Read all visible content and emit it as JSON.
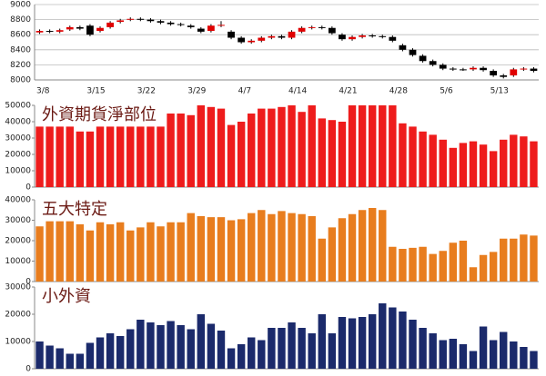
{
  "chart_data": [
    {
      "type": "candlestick",
      "categories": [
        "3/8",
        null,
        null,
        null,
        null,
        "3/15",
        null,
        null,
        null,
        null,
        "3/22",
        null,
        null,
        null,
        null,
        "3/29",
        null,
        null,
        null,
        null,
        "4/7",
        null,
        null,
        null,
        null,
        "4/14",
        null,
        null,
        null,
        null,
        "4/21",
        null,
        null,
        null,
        null,
        "4/28",
        null,
        null,
        null,
        null,
        "5/6",
        null,
        null,
        null,
        null,
        "5/13",
        null,
        null,
        null,
        null
      ],
      "open": [
        8630,
        8650,
        8640,
        8670,
        8700,
        8720,
        8650,
        8700,
        8770,
        8800,
        8810,
        8800,
        8780,
        8760,
        8740,
        8720,
        8680,
        8650,
        8720,
        8640,
        8560,
        8500,
        8520,
        8560,
        8580,
        8560,
        8640,
        8690,
        8700,
        8690,
        8600,
        8540,
        8570,
        8590,
        8580,
        8570,
        8460,
        8400,
        8320,
        8250,
        8200,
        8150,
        8140,
        8140,
        8160,
        8120,
        8060,
        8060,
        8140,
        8150
      ],
      "close": [
        8650,
        8640,
        8660,
        8700,
        8680,
        8600,
        8690,
        8760,
        8790,
        8810,
        8800,
        8780,
        8760,
        8740,
        8730,
        8700,
        8640,
        8720,
        8730,
        8560,
        8500,
        8520,
        8560,
        8580,
        8560,
        8640,
        8690,
        8700,
        8690,
        8620,
        8540,
        8570,
        8590,
        8580,
        8570,
        8520,
        8400,
        8330,
        8250,
        8200,
        8150,
        8140,
        8140,
        8160,
        8130,
        8060,
        8040,
        8140,
        8150,
        8120
      ],
      "high": [
        8670,
        8670,
        8680,
        8720,
        8720,
        8740,
        8710,
        8780,
        8810,
        8830,
        8830,
        8820,
        8800,
        8780,
        8760,
        8740,
        8700,
        8740,
        8780,
        8660,
        8580,
        8540,
        8580,
        8600,
        8600,
        8660,
        8710,
        8720,
        8720,
        8710,
        8620,
        8590,
        8610,
        8610,
        8600,
        8590,
        8480,
        8420,
        8340,
        8270,
        8220,
        8170,
        8160,
        8180,
        8180,
        8140,
        8080,
        8160,
        8170,
        8170
      ],
      "low": [
        8610,
        8620,
        8620,
        8650,
        8660,
        8580,
        8630,
        8680,
        8750,
        8780,
        8780,
        8760,
        8740,
        8720,
        8710,
        8680,
        8620,
        8630,
        8700,
        8540,
        8480,
        8480,
        8500,
        8540,
        8540,
        8540,
        8620,
        8670,
        8670,
        8600,
        8520,
        8520,
        8550,
        8560,
        8550,
        8500,
        8380,
        8310,
        8230,
        8180,
        8130,
        8120,
        8120,
        8120,
        8110,
        8040,
        8020,
        8040,
        8120,
        8100
      ],
      "up_color": "#e00000",
      "down_color": "#000000",
      "ylim": [
        8000,
        9000
      ],
      "yticks": [
        8000,
        8200,
        8400,
        8600,
        8800,
        9000
      ],
      "grid": true
    },
    {
      "type": "bar",
      "title": "外資期貨淨部位",
      "color": "#ee1c1c",
      "values": [
        37000,
        37000,
        37000,
        37000,
        34000,
        34000,
        37000,
        37000,
        37000,
        37000,
        37000,
        37000,
        37000,
        45000,
        45000,
        44000,
        50000,
        49000,
        48000,
        38000,
        40000,
        45000,
        48000,
        48000,
        49000,
        50000,
        46000,
        50000,
        42000,
        41000,
        40000,
        50000,
        50000,
        50000,
        50000,
        50000,
        39000,
        37000,
        34000,
        32000,
        29000,
        24000,
        27000,
        28000,
        26000,
        22000,
        29000,
        32000,
        31000,
        28000
      ],
      "ylim": [
        0,
        50000
      ],
      "yticks": [
        0,
        10000,
        20000,
        30000,
        40000,
        50000
      ],
      "grid": false
    },
    {
      "type": "bar",
      "title": "五大特定",
      "color": "#e87d1e",
      "values": [
        27000,
        29500,
        29500,
        29500,
        28000,
        25000,
        29000,
        28000,
        29000,
        25000,
        26500,
        29000,
        27000,
        29000,
        29000,
        33500,
        32000,
        31500,
        31500,
        30000,
        30500,
        33500,
        35000,
        33000,
        34500,
        33500,
        33000,
        32000,
        21000,
        26500,
        31000,
        33000,
        35000,
        36000,
        35000,
        17000,
        16000,
        16500,
        17000,
        13500,
        15000,
        19000,
        20000,
        7000,
        13000,
        14500,
        21000,
        21000,
        23000,
        22500
      ],
      "ylim": [
        0,
        40000
      ],
      "yticks": [
        0,
        10000,
        20000,
        30000,
        40000
      ],
      "grid": false
    },
    {
      "type": "bar",
      "title": "小外資",
      "color": "#1b2a6b",
      "values": [
        10000,
        8500,
        7500,
        5500,
        5500,
        9500,
        11500,
        13000,
        12000,
        14500,
        18000,
        17000,
        16000,
        17500,
        16000,
        14500,
        20000,
        16500,
        14000,
        7500,
        9000,
        11500,
        10500,
        15000,
        15000,
        17000,
        15000,
        13000,
        20000,
        13000,
        19000,
        18500,
        19000,
        20000,
        24000,
        22500,
        21000,
        18000,
        15000,
        13000,
        10500,
        11000,
        9000,
        6500,
        15500,
        10500,
        13500,
        10000,
        8000,
        6500
      ],
      "ylim": [
        0,
        30000
      ],
      "yticks": [
        0,
        10000,
        20000,
        30000
      ],
      "grid": false
    }
  ]
}
